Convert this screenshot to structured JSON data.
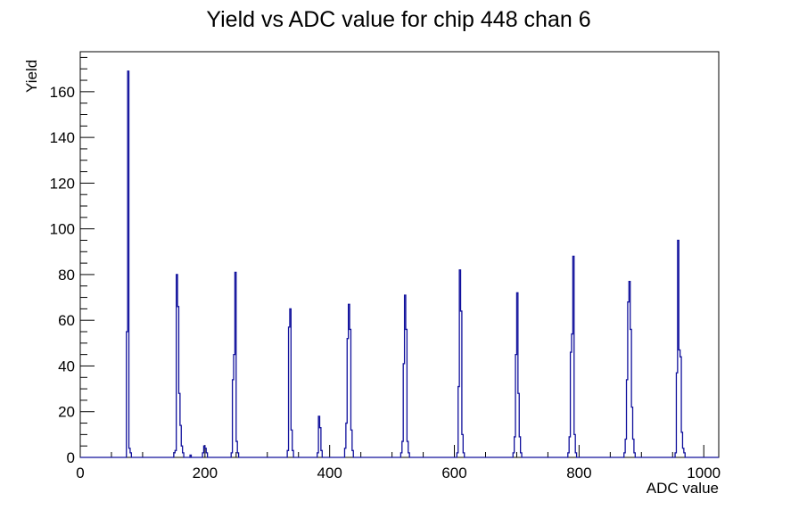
{
  "canvas": {
    "background_color": "#ffffff",
    "frame_color": "#000000"
  },
  "chart_data": {
    "type": "bar",
    "subtype": "histogram-outline",
    "title": "Yield vs ADC value for chip 448 chan 6",
    "xlabel": "ADC value",
    "ylabel": "Yield",
    "line_color": "#10109c",
    "x_range": [
      0,
      1024
    ],
    "y_range": [
      0,
      177.5
    ],
    "x_major_ticks": [
      0,
      200,
      400,
      600,
      800,
      1000
    ],
    "x_major_tick_labels": [
      "0",
      "200",
      "400",
      "600",
      "800",
      "1000"
    ],
    "x_minor_step": 50,
    "y_major_ticks": [
      0,
      20,
      40,
      60,
      80,
      100,
      120,
      140,
      160
    ],
    "y_major_tick_labels": [
      "0",
      "20",
      "40",
      "60",
      "80",
      "100",
      "120",
      "140",
      "160"
    ],
    "y_minor_step": 5,
    "grid": false,
    "legend": false,
    "bin_width": 2,
    "bins": [
      [
        74,
        55
      ],
      [
        76,
        169
      ],
      [
        78,
        4
      ],
      [
        80,
        2
      ],
      [
        150,
        2
      ],
      [
        152,
        3
      ],
      [
        154,
        80
      ],
      [
        156,
        66
      ],
      [
        158,
        28
      ],
      [
        160,
        14
      ],
      [
        162,
        5
      ],
      [
        164,
        2
      ],
      [
        176,
        1
      ],
      [
        196,
        2
      ],
      [
        198,
        5
      ],
      [
        200,
        4
      ],
      [
        202,
        2
      ],
      [
        242,
        2
      ],
      [
        244,
        34
      ],
      [
        246,
        45
      ],
      [
        248,
        81
      ],
      [
        250,
        7
      ],
      [
        252,
        2
      ],
      [
        332,
        3
      ],
      [
        334,
        57
      ],
      [
        336,
        65
      ],
      [
        338,
        12
      ],
      [
        340,
        3
      ],
      [
        380,
        2
      ],
      [
        382,
        18
      ],
      [
        384,
        13
      ],
      [
        386,
        3
      ],
      [
        424,
        4
      ],
      [
        426,
        15
      ],
      [
        428,
        52
      ],
      [
        430,
        67
      ],
      [
        432,
        56
      ],
      [
        434,
        12
      ],
      [
        436,
        3
      ],
      [
        514,
        2
      ],
      [
        516,
        7
      ],
      [
        518,
        41
      ],
      [
        520,
        71
      ],
      [
        522,
        56
      ],
      [
        524,
        7
      ],
      [
        526,
        2
      ],
      [
        604,
        2
      ],
      [
        606,
        31
      ],
      [
        608,
        82
      ],
      [
        610,
        64
      ],
      [
        612,
        10
      ],
      [
        614,
        2
      ],
      [
        694,
        2
      ],
      [
        696,
        9
      ],
      [
        698,
        45
      ],
      [
        700,
        72
      ],
      [
        702,
        28
      ],
      [
        704,
        9
      ],
      [
        706,
        2
      ],
      [
        782,
        2
      ],
      [
        784,
        9
      ],
      [
        786,
        46
      ],
      [
        788,
        54
      ],
      [
        790,
        88
      ],
      [
        792,
        10
      ],
      [
        794,
        2
      ],
      [
        872,
        2
      ],
      [
        874,
        8
      ],
      [
        876,
        34
      ],
      [
        878,
        68
      ],
      [
        880,
        77
      ],
      [
        882,
        56
      ],
      [
        884,
        22
      ],
      [
        886,
        8
      ],
      [
        888,
        2
      ],
      [
        954,
        2
      ],
      [
        956,
        37
      ],
      [
        958,
        95
      ],
      [
        960,
        47
      ],
      [
        962,
        44
      ],
      [
        964,
        11
      ],
      [
        966,
        4
      ],
      [
        968,
        2
      ]
    ]
  }
}
